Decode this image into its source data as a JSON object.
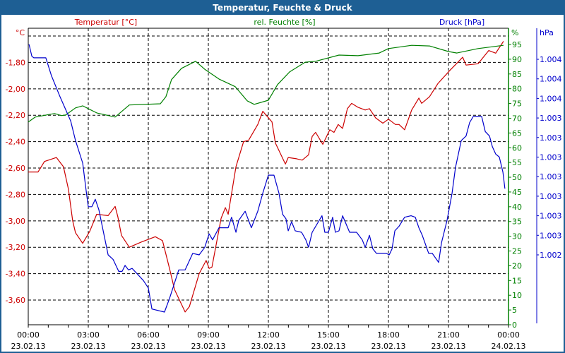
{
  "window": {
    "title": "Temperatur, Feuchte & Druck"
  },
  "colors": {
    "temperature": "#cc0000",
    "humidity": "#008000",
    "pressure": "#0000cc",
    "titlebar": "#1e5f94"
  },
  "chart_data": {
    "type": "line",
    "title": "Temperatur, Feuchte & Druck",
    "grid": true,
    "x": {
      "unit": "hours",
      "range": [
        0,
        24
      ],
      "ticks": [
        {
          "h": 0,
          "time": "00:00",
          "date": "23.02.13"
        },
        {
          "h": 3,
          "time": "03:00",
          "date": "23.02.13"
        },
        {
          "h": 6,
          "time": "06:00",
          "date": "23.02.13"
        },
        {
          "h": 9,
          "time": "09:00",
          "date": "23.02.13"
        },
        {
          "h": 12,
          "time": "12:00",
          "date": "23.02.13"
        },
        {
          "h": 15,
          "time": "15:00",
          "date": "23.02.13"
        },
        {
          "h": 18,
          "time": "18:00",
          "date": "23.02.13"
        },
        {
          "h": 21,
          "time": "21:00",
          "date": "23.02.13"
        },
        {
          "h": 24,
          "time": "00:00",
          "date": "24.02.13"
        }
      ]
    },
    "axes": {
      "temperature": {
        "label": "Temperatur [°C]",
        "unit": "°C",
        "range": [
          -3.787,
          -1.541
        ],
        "ticks": [
          {
            "v": -1.8,
            "label": "-1,80"
          },
          {
            "v": -2.0,
            "label": "-2,00"
          },
          {
            "v": -2.2,
            "label": "-2,20"
          },
          {
            "v": -2.4,
            "label": "-2,40"
          },
          {
            "v": -2.6,
            "label": "-2,60"
          },
          {
            "v": -2.8,
            "label": "-2,80"
          },
          {
            "v": -3.0,
            "label": "-3,00"
          },
          {
            "v": -3.2,
            "label": "-3,20"
          },
          {
            "v": -3.4,
            "label": "-3,40"
          },
          {
            "v": -3.6,
            "label": "-3,60"
          }
        ],
        "gridlines": [
          -1.6,
          -1.8,
          -2.0,
          -2.2,
          -2.4,
          -2.6,
          -2.8,
          -3.0,
          -3.2,
          -3.4,
          -3.6
        ]
      },
      "humidity": {
        "label": "rel. Feuchte [%]",
        "unit": "%",
        "range": [
          0,
          100.5
        ],
        "ticks": [
          0,
          5,
          10,
          15,
          20,
          25,
          30,
          35,
          40,
          45,
          50,
          55,
          60,
          65,
          70,
          75,
          80,
          85,
          90,
          95
        ]
      },
      "pressure": {
        "label": "Druck [hPa]",
        "unit": "hPa",
        "range": [
          1002.44,
          1003.97
        ],
        "ticks": [
          {
            "v": 1003.78,
            "label": "1.004"
          },
          {
            "v": 1003.65,
            "label": "1.004"
          },
          {
            "v": 1003.52,
            "label": "1.004"
          },
          {
            "v": 1003.39,
            "label": "1.003"
          },
          {
            "v": 1003.26,
            "label": "1.003"
          },
          {
            "v": 1003.13,
            "label": "1.003"
          },
          {
            "v": 1003.0,
            "label": "1.003"
          },
          {
            "v": 1002.87,
            "label": "1.003"
          },
          {
            "v": 1002.74,
            "label": "1.003"
          },
          {
            "v": 1002.61,
            "label": "1.003"
          },
          {
            "v": 1002.48,
            "label": "1.002"
          }
        ]
      }
    },
    "series": [
      {
        "name": "Temperatur",
        "axis": "temperature",
        "points": [
          [
            0,
            -2.63
          ],
          [
            0.49,
            -2.63
          ],
          [
            0.81,
            -2.55
          ],
          [
            1.41,
            -2.52
          ],
          [
            1.76,
            -2.59
          ],
          [
            2.01,
            -2.76
          ],
          [
            2.22,
            -3.0
          ],
          [
            2.36,
            -3.09
          ],
          [
            2.72,
            -3.17
          ],
          [
            3.07,
            -3.08
          ],
          [
            3.42,
            -2.95
          ],
          [
            3.99,
            -2.96
          ],
          [
            4.34,
            -2.89
          ],
          [
            4.48,
            -2.97
          ],
          [
            4.66,
            -3.11
          ],
          [
            5.05,
            -3.2
          ],
          [
            5.65,
            -3.16
          ],
          [
            6.35,
            -3.12
          ],
          [
            6.71,
            -3.15
          ],
          [
            7.06,
            -3.36
          ],
          [
            7.31,
            -3.52
          ],
          [
            7.84,
            -3.69
          ],
          [
            8.05,
            -3.65
          ],
          [
            8.54,
            -3.4
          ],
          [
            8.89,
            -3.3
          ],
          [
            9.04,
            -3.36
          ],
          [
            9.18,
            -3.35
          ],
          [
            9.64,
            -2.98
          ],
          [
            9.85,
            -2.9
          ],
          [
            9.99,
            -2.95
          ],
          [
            10.38,
            -2.59
          ],
          [
            10.76,
            -2.4
          ],
          [
            11.01,
            -2.39
          ],
          [
            11.47,
            -2.27
          ],
          [
            11.72,
            -2.17
          ],
          [
            11.89,
            -2.2
          ],
          [
            12.18,
            -2.25
          ],
          [
            12.35,
            -2.41
          ],
          [
            12.85,
            -2.57
          ],
          [
            12.99,
            -2.52
          ],
          [
            13.41,
            -2.53
          ],
          [
            13.69,
            -2.54
          ],
          [
            14.01,
            -2.5
          ],
          [
            14.19,
            -2.36
          ],
          [
            14.36,
            -2.33
          ],
          [
            14.72,
            -2.42
          ],
          [
            15.07,
            -2.31
          ],
          [
            15.28,
            -2.33
          ],
          [
            15.49,
            -2.27
          ],
          [
            15.71,
            -2.3
          ],
          [
            15.95,
            -2.15
          ],
          [
            16.16,
            -2.11
          ],
          [
            16.48,
            -2.14
          ],
          [
            16.84,
            -2.16
          ],
          [
            17.05,
            -2.15
          ],
          [
            17.36,
            -2.22
          ],
          [
            17.72,
            -2.26
          ],
          [
            18.0,
            -2.23
          ],
          [
            18.35,
            -2.27
          ],
          [
            18.53,
            -2.27
          ],
          [
            18.81,
            -2.31
          ],
          [
            19.16,
            -2.16
          ],
          [
            19.52,
            -2.07
          ],
          [
            19.66,
            -2.11
          ],
          [
            20.05,
            -2.06
          ],
          [
            20.47,
            -1.96
          ],
          [
            21.07,
            -1.86
          ],
          [
            21.46,
            -1.8
          ],
          [
            21.71,
            -1.76
          ],
          [
            21.88,
            -1.82
          ],
          [
            22.48,
            -1.81
          ],
          [
            23.01,
            -1.71
          ],
          [
            23.36,
            -1.73
          ],
          [
            23.75,
            -1.64
          ]
        ]
      },
      {
        "name": "rel. Feuchte",
        "axis": "humidity",
        "points": [
          [
            0,
            68.7
          ],
          [
            0.35,
            70.4
          ],
          [
            1.31,
            71.6
          ],
          [
            1.66,
            70.9
          ],
          [
            1.87,
            71.1
          ],
          [
            2.36,
            73.5
          ],
          [
            2.72,
            74.2
          ],
          [
            3.42,
            71.8
          ],
          [
            4.34,
            70.4
          ],
          [
            5.05,
            74.5
          ],
          [
            6.6,
            74.9
          ],
          [
            6.88,
            77.3
          ],
          [
            7.16,
            83.1
          ],
          [
            7.66,
            86.9
          ],
          [
            8.36,
            89.3
          ],
          [
            8.82,
            86.6
          ],
          [
            9.53,
            83.3
          ],
          [
            10.34,
            80.7
          ],
          [
            10.94,
            75.9
          ],
          [
            11.29,
            74.7
          ],
          [
            12.0,
            76.1
          ],
          [
            12.46,
            81.4
          ],
          [
            13.06,
            85.7
          ],
          [
            13.84,
            89.0
          ],
          [
            14.36,
            89.3
          ],
          [
            15.53,
            91.4
          ],
          [
            16.48,
            91.2
          ],
          [
            17.54,
            92.1
          ],
          [
            18.0,
            93.6
          ],
          [
            19.16,
            94.7
          ],
          [
            20.05,
            94.5
          ],
          [
            21.0,
            92.6
          ],
          [
            21.42,
            92.1
          ],
          [
            22.48,
            93.6
          ],
          [
            23.75,
            94.7
          ]
        ]
      },
      {
        "name": "Druck",
        "axis": "pressure",
        "points": [
          [
            0.04,
            1003.88
          ],
          [
            0.18,
            1003.8
          ],
          [
            0.28,
            1003.79
          ],
          [
            0.88,
            1003.79
          ],
          [
            1.16,
            1003.67
          ],
          [
            1.59,
            1003.53
          ],
          [
            2.12,
            1003.37
          ],
          [
            2.36,
            1003.24
          ],
          [
            2.72,
            1003.09
          ],
          [
            2.89,
            1002.91
          ],
          [
            3.0,
            1002.8
          ],
          [
            3.18,
            1002.8
          ],
          [
            3.35,
            1002.85
          ],
          [
            3.53,
            1002.78
          ],
          [
            3.99,
            1002.48
          ],
          [
            4.24,
            1002.45
          ],
          [
            4.52,
            1002.37
          ],
          [
            4.69,
            1002.37
          ],
          [
            4.84,
            1002.41
          ],
          [
            5.01,
            1002.38
          ],
          [
            5.19,
            1002.39
          ],
          [
            5.75,
            1002.31
          ],
          [
            6.0,
            1002.26
          ],
          [
            6.18,
            1002.12
          ],
          [
            6.81,
            1002.1
          ],
          [
            7.06,
            1002.19
          ],
          [
            7.52,
            1002.38
          ],
          [
            7.84,
            1002.38
          ],
          [
            8.22,
            1002.49
          ],
          [
            8.54,
            1002.48
          ],
          [
            8.82,
            1002.53
          ],
          [
            9.04,
            1002.62
          ],
          [
            9.21,
            1002.58
          ],
          [
            9.53,
            1002.66
          ],
          [
            9.99,
            1002.66
          ],
          [
            10.16,
            1002.73
          ],
          [
            10.38,
            1002.63
          ],
          [
            10.52,
            1002.71
          ],
          [
            10.84,
            1002.77
          ],
          [
            11.15,
            1002.66
          ],
          [
            11.47,
            1002.77
          ],
          [
            11.72,
            1002.89
          ],
          [
            12.0,
            1003.01
          ],
          [
            12.28,
            1003.01
          ],
          [
            12.53,
            1002.89
          ],
          [
            12.71,
            1002.75
          ],
          [
            12.88,
            1002.72
          ],
          [
            12.99,
            1002.64
          ],
          [
            13.16,
            1002.7
          ],
          [
            13.34,
            1002.64
          ],
          [
            13.66,
            1002.63
          ],
          [
            13.87,
            1002.58
          ],
          [
            14.01,
            1002.53
          ],
          [
            14.19,
            1002.63
          ],
          [
            14.68,
            1002.74
          ],
          [
            14.82,
            1002.63
          ],
          [
            15.0,
            1002.63
          ],
          [
            15.21,
            1002.73
          ],
          [
            15.35,
            1002.63
          ],
          [
            15.53,
            1002.64
          ],
          [
            15.71,
            1002.74
          ],
          [
            16.06,
            1002.63
          ],
          [
            16.41,
            1002.63
          ],
          [
            16.69,
            1002.58
          ],
          [
            16.84,
            1002.53
          ],
          [
            17.05,
            1002.61
          ],
          [
            17.22,
            1002.52
          ],
          [
            17.4,
            1002.49
          ],
          [
            17.89,
            1002.49
          ],
          [
            18.04,
            1002.48
          ],
          [
            18.18,
            1002.52
          ],
          [
            18.32,
            1002.64
          ],
          [
            18.53,
            1002.67
          ],
          [
            18.81,
            1002.73
          ],
          [
            19.13,
            1002.74
          ],
          [
            19.34,
            1002.73
          ],
          [
            19.52,
            1002.66
          ],
          [
            19.69,
            1002.61
          ],
          [
            20.01,
            1002.49
          ],
          [
            20.19,
            1002.49
          ],
          [
            20.51,
            1002.43
          ],
          [
            20.65,
            1002.56
          ],
          [
            20.93,
            1002.71
          ],
          [
            21.18,
            1002.89
          ],
          [
            21.35,
            1003.06
          ],
          [
            21.64,
            1003.24
          ],
          [
            21.88,
            1003.27
          ],
          [
            22.06,
            1003.36
          ],
          [
            22.24,
            1003.4
          ],
          [
            22.66,
            1003.4
          ],
          [
            22.84,
            1003.3
          ],
          [
            23.05,
            1003.27
          ],
          [
            23.19,
            1003.2
          ],
          [
            23.36,
            1003.15
          ],
          [
            23.54,
            1003.13
          ],
          [
            23.72,
            1003.03
          ],
          [
            23.82,
            1002.92
          ]
        ]
      }
    ]
  }
}
